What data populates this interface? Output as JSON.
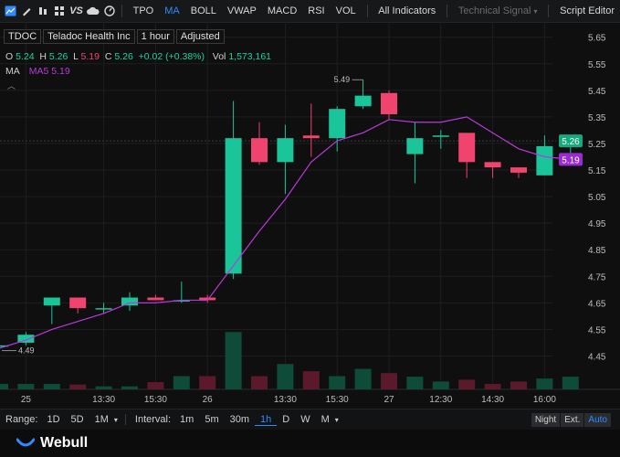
{
  "toolbar": {
    "icons": [
      "line-chart-icon",
      "pencil-icon",
      "candles-icon",
      "grid-icon",
      "vs-icon",
      "cloud-icon",
      "speed-icon"
    ],
    "vs_label": "VS",
    "items": [
      {
        "label": "TPO",
        "active": false
      },
      {
        "label": "MA",
        "active": true
      },
      {
        "label": "BOLL",
        "active": false
      },
      {
        "label": "VWAP",
        "active": false
      },
      {
        "label": "MACD",
        "active": false
      },
      {
        "label": "RSI",
        "active": false
      },
      {
        "label": "VOL",
        "active": false
      }
    ],
    "all_indicators": "All Indicators",
    "technical_signal": "Technical Signal",
    "script_editor": "Script Editor"
  },
  "legend": {
    "ticker": "TDOC",
    "name": "Teladoc Health Inc",
    "interval": "1 hour",
    "adjust": "Adjusted",
    "o_label": "O",
    "o": "5.24",
    "h_label": "H",
    "h": "5.26",
    "l_label": "L",
    "l": "5.19",
    "c_label": "C",
    "c": "5.26",
    "change": "+0.02 (+0.38%)",
    "vol_label": "Vol",
    "vol": "1,573,161",
    "ma_label": "MA",
    "ma5": "MA5 5.19"
  },
  "chart_data": {
    "type": "candlestick",
    "y_ticks": [
      4.45,
      4.55,
      4.65,
      4.75,
      4.85,
      4.95,
      5.05,
      5.15,
      5.25,
      5.35,
      5.45,
      5.55,
      5.65
    ],
    "y_tick_labels": [
      "4.45",
      "4.55",
      "4.65",
      "4.75",
      "4.85",
      "4.95",
      "5.05",
      "5.15",
      "5.25",
      "5.35",
      "5.45",
      "5.55",
      "5.65"
    ],
    "ylim": [
      4.4,
      5.68
    ],
    "x_labels": [
      {
        "i": 1,
        "label": "25"
      },
      {
        "i": 4,
        "label": "13:30"
      },
      {
        "i": 6,
        "label": "15:30"
      },
      {
        "i": 8,
        "label": "26"
      },
      {
        "i": 11,
        "label": "13:30"
      },
      {
        "i": 13,
        "label": "15:30"
      },
      {
        "i": 15,
        "label": "27"
      },
      {
        "i": 17,
        "label": "12:30"
      },
      {
        "i": 19,
        "label": "14:30"
      },
      {
        "i": 21,
        "label": "16:00"
      }
    ],
    "candles": [
      {
        "o": 4.49,
        "h": 4.49,
        "l": 4.49,
        "c": 4.49
      },
      {
        "o": 4.5,
        "h": 4.54,
        "l": 4.49,
        "c": 4.53
      },
      {
        "o": 4.64,
        "h": 4.67,
        "l": 4.57,
        "c": 4.67
      },
      {
        "o": 4.67,
        "h": 4.67,
        "l": 4.61,
        "c": 4.63
      },
      {
        "o": 4.63,
        "h": 4.65,
        "l": 4.61,
        "c": 4.63
      },
      {
        "o": 4.64,
        "h": 4.69,
        "l": 4.62,
        "c": 4.67
      },
      {
        "o": 4.67,
        "h": 4.68,
        "l": 4.66,
        "c": 4.66
      },
      {
        "o": 4.66,
        "h": 4.73,
        "l": 4.65,
        "c": 4.66
      },
      {
        "o": 4.67,
        "h": 4.68,
        "l": 4.65,
        "c": 4.66
      },
      {
        "o": 4.76,
        "h": 5.41,
        "l": 4.74,
        "c": 5.27
      },
      {
        "o": 5.27,
        "h": 5.33,
        "l": 5.17,
        "c": 5.18
      },
      {
        "o": 5.18,
        "h": 5.32,
        "l": 5.06,
        "c": 5.27
      },
      {
        "o": 5.28,
        "h": 5.4,
        "l": 5.2,
        "c": 5.27
      },
      {
        "o": 5.27,
        "h": 5.39,
        "l": 5.22,
        "c": 5.38
      },
      {
        "o": 5.39,
        "h": 5.49,
        "l": 5.38,
        "c": 5.43
      },
      {
        "o": 5.44,
        "h": 5.45,
        "l": 5.34,
        "c": 5.36
      },
      {
        "o": 5.21,
        "h": 5.33,
        "l": 5.1,
        "c": 5.27
      },
      {
        "o": 5.28,
        "h": 5.3,
        "l": 5.23,
        "c": 5.28
      },
      {
        "o": 5.29,
        "h": 5.29,
        "l": 5.12,
        "c": 5.18
      },
      {
        "o": 5.18,
        "h": 5.18,
        "l": 5.12,
        "c": 5.16
      },
      {
        "o": 5.16,
        "h": 5.16,
        "l": 5.12,
        "c": 5.14
      },
      {
        "o": 5.13,
        "h": 5.28,
        "l": 5.13,
        "c": 5.24
      },
      {
        "o": 5.24,
        "h": 5.26,
        "l": 5.19,
        "c": 5.26
      }
    ],
    "volumes": [
      0.09,
      0.09,
      0.09,
      0.08,
      0.05,
      0.05,
      0.12,
      0.22,
      0.22,
      0.95,
      0.22,
      0.42,
      0.3,
      0.22,
      0.34,
      0.27,
      0.21,
      0.13,
      0.16,
      0.09,
      0.13,
      0.18,
      0.21
    ],
    "ma5": [
      4.48,
      4.51,
      4.55,
      4.58,
      4.61,
      4.65,
      4.65,
      4.66,
      4.66,
      4.79,
      4.92,
      5.04,
      5.18,
      5.26,
      5.29,
      5.34,
      5.33,
      5.33,
      5.35,
      5.29,
      5.23,
      5.2,
      5.19
    ],
    "annotations": {
      "high_label": "5.49",
      "low_label": "4.49"
    },
    "last_price": {
      "label": "5.26",
      "color": "#17a97e"
    },
    "ma_last": {
      "label": "5.19",
      "color": "#9b2bd1"
    }
  },
  "colors": {
    "up": "#1bc59a",
    "down": "#f0436d",
    "ma5": "#b73ad8",
    "grid": "#1d1e20"
  },
  "bottombar": {
    "range_label": "Range:",
    "ranges": [
      {
        "label": "1D",
        "active": false
      },
      {
        "label": "5D",
        "active": false
      },
      {
        "label": "1M",
        "active": false
      }
    ],
    "interval_label": "Interval:",
    "intervals": [
      {
        "label": "1m",
        "active": false
      },
      {
        "label": "5m",
        "active": false
      },
      {
        "label": "30m",
        "active": false
      },
      {
        "label": "1h",
        "active": true
      },
      {
        "label": "D",
        "active": false
      },
      {
        "label": "W",
        "active": false
      },
      {
        "label": "M",
        "active": false
      }
    ],
    "sessions": [
      {
        "label": "Night",
        "active": false
      },
      {
        "label": "Ext.",
        "active": false
      },
      {
        "label": "Auto",
        "active": true
      }
    ]
  },
  "footer": {
    "brand": "Webull"
  }
}
